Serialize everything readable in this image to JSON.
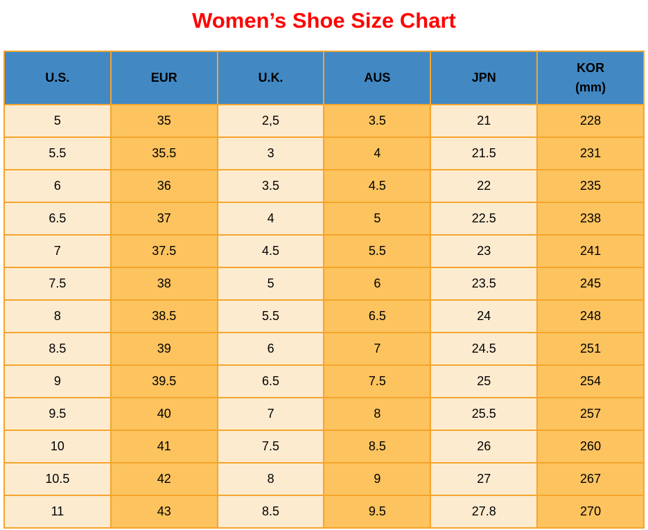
{
  "title": "Women’s Shoe Size Chart",
  "colors": {
    "title": "#ff0000",
    "header_bg": "#4289c4",
    "header_text": "#000000",
    "cell_light": "#fdebd0",
    "cell_orange": "#fcc35f",
    "grid_border": "#f5a42b",
    "page_bg": "#ffffff"
  },
  "chart_data": {
    "type": "table",
    "title": "Women’s Shoe Size Chart",
    "columns": [
      {
        "key": "us",
        "label": "U.S."
      },
      {
        "key": "eur",
        "label": "EUR"
      },
      {
        "key": "uk",
        "label": "U.K."
      },
      {
        "key": "aus",
        "label": "AUS"
      },
      {
        "key": "jpn",
        "label": "JPN"
      },
      {
        "key": "kor",
        "label": "KOR",
        "sublabel": "(mm)"
      }
    ],
    "rows": [
      [
        "5",
        "35",
        "2,5",
        "3.5",
        "21",
        "228"
      ],
      [
        "5.5",
        "35.5",
        "3",
        "4",
        "21.5",
        "231"
      ],
      [
        "6",
        "36",
        "3.5",
        "4.5",
        "22",
        "235"
      ],
      [
        "6.5",
        "37",
        "4",
        "5",
        "22.5",
        "238"
      ],
      [
        "7",
        "37.5",
        "4.5",
        "5.5",
        "23",
        "241"
      ],
      [
        "7.5",
        "38",
        "5",
        "6",
        "23.5",
        "245"
      ],
      [
        "8",
        "38.5",
        "5.5",
        "6.5",
        "24",
        "248"
      ],
      [
        "8.5",
        "39",
        "6",
        "7",
        "24.5",
        "251"
      ],
      [
        "9",
        "39.5",
        "6.5",
        "7.5",
        "25",
        "254"
      ],
      [
        "9.5",
        "40",
        "7",
        "8",
        "25.5",
        "257"
      ],
      [
        "10",
        "41",
        "7.5",
        "8.5",
        "26",
        "260"
      ],
      [
        "10.5",
        "42",
        "8",
        "9",
        "27",
        "267"
      ],
      [
        "11",
        "43",
        "8.5",
        "9.5",
        "27.8",
        "270"
      ]
    ]
  }
}
